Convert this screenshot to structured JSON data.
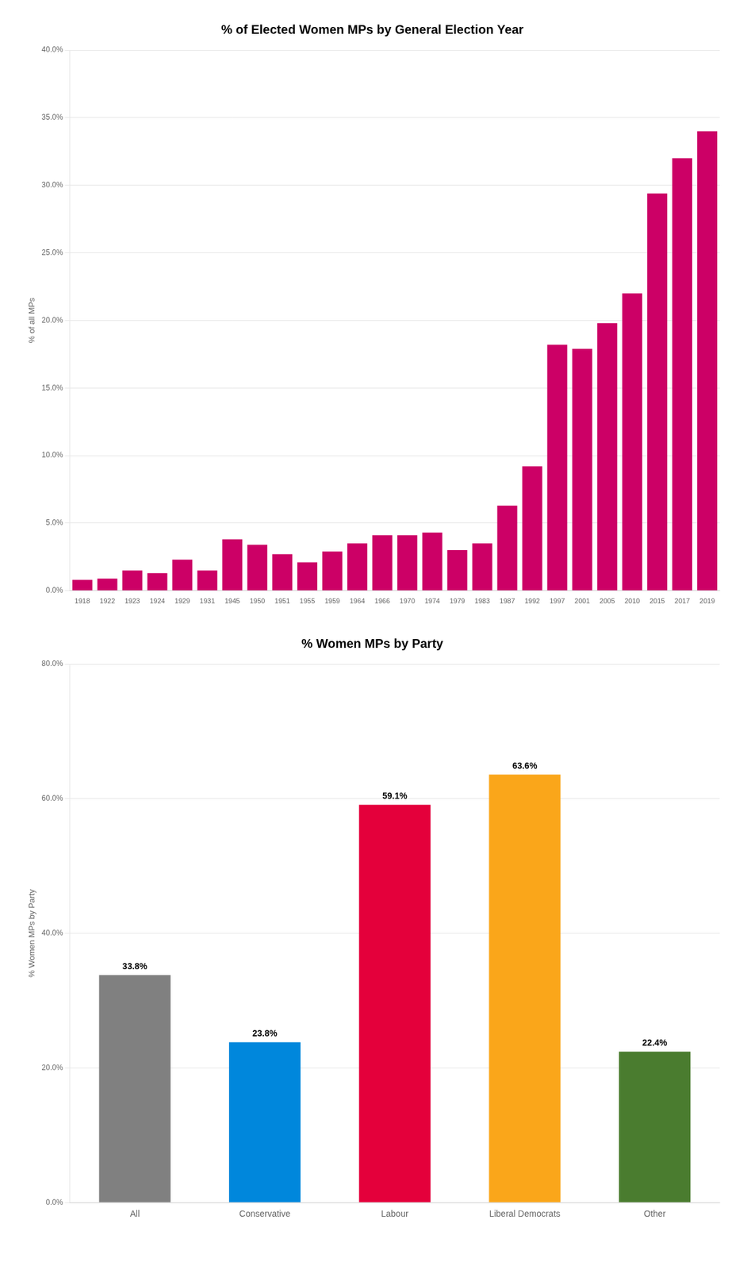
{
  "chart_data": [
    {
      "type": "bar",
      "title": "% of Elected Women MPs by General Election Year",
      "ylabel": "% of all MPs",
      "categories": [
        "1918",
        "1922",
        "1923",
        "1924",
        "1929",
        "1931",
        "1945",
        "1950",
        "1951",
        "1955",
        "1959",
        "1964",
        "1966",
        "1970",
        "1974",
        "1979",
        "1983",
        "1987",
        "1992",
        "1997",
        "2001",
        "2005",
        "2010",
        "2015",
        "2017",
        "2019"
      ],
      "values": [
        0.8,
        0.9,
        1.5,
        1.3,
        2.3,
        1.5,
        3.8,
        3.4,
        2.7,
        2.1,
        2.9,
        3.5,
        4.1,
        4.1,
        4.3,
        3.0,
        3.5,
        6.3,
        9.2,
        18.2,
        17.9,
        19.8,
        22.0,
        29.4,
        32.0,
        34.0
      ],
      "color": "#cc0066",
      "ylim": [
        0,
        40
      ],
      "yticks": [
        {
          "value": 0,
          "label": "0.0%"
        },
        {
          "value": 5,
          "label": "5.0%"
        },
        {
          "value": 10,
          "label": "10.0%"
        },
        {
          "value": 15,
          "label": "15.0%"
        },
        {
          "value": 20,
          "label": "20.0%"
        },
        {
          "value": 25,
          "label": "25.0%"
        },
        {
          "value": 30,
          "label": "30.0%"
        },
        {
          "value": 35,
          "label": "35.0%"
        },
        {
          "value": 40,
          "label": "40.0%"
        }
      ],
      "grid": true
    },
    {
      "type": "bar",
      "title": "% Women MPs by Party",
      "ylabel": "% Women MPs by Party",
      "categories": [
        "All",
        "Conservative",
        "Labour",
        "Liberal Democrats",
        "Other"
      ],
      "values": [
        33.8,
        23.8,
        59.1,
        63.6,
        22.4
      ],
      "value_labels": [
        "33.8%",
        "23.8%",
        "59.1%",
        "63.6%",
        "22.4%"
      ],
      "colors": [
        "#808080",
        "#0087dc",
        "#e4003b",
        "#faa61a",
        "#4a7c2f"
      ],
      "ylim": [
        0,
        80
      ],
      "yticks": [
        {
          "value": 0,
          "label": "0.0%"
        },
        {
          "value": 20,
          "label": "20.0%"
        },
        {
          "value": 40,
          "label": "40.0%"
        },
        {
          "value": 60,
          "label": "60.0%"
        },
        {
          "value": 80,
          "label": "80.0%"
        }
      ],
      "grid": true,
      "data_labels": true
    }
  ]
}
